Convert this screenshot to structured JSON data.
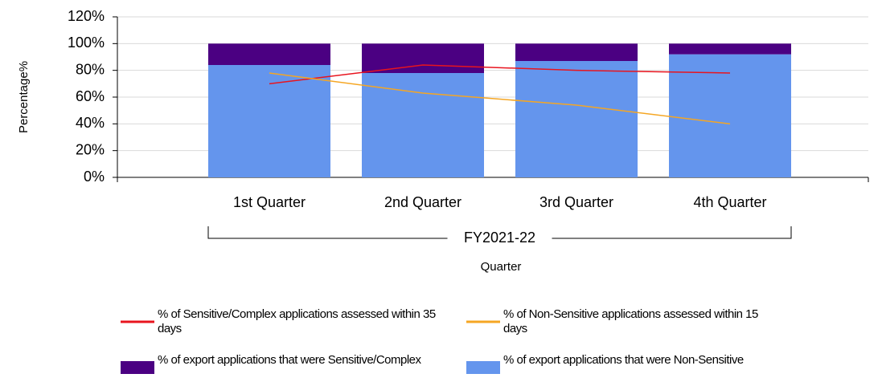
{
  "chart_data": {
    "type": "bar",
    "categories": [
      "1st Quarter",
      "2nd Quarter",
      "3rd Quarter",
      "4th Quarter"
    ],
    "category_group": "FY2021-22",
    "x_label": "Quarter",
    "y_label": "Percentage%",
    "ylim": [
      0,
      120
    ],
    "yticks": [
      {
        "value": 0,
        "label": "0%"
      },
      {
        "value": 20,
        "label": "20%"
      },
      {
        "value": 40,
        "label": "40%"
      },
      {
        "value": 60,
        "label": "60%"
      },
      {
        "value": 80,
        "label": "80%"
      },
      {
        "value": 100,
        "label": "100%"
      },
      {
        "value": 120,
        "label": "120%"
      }
    ],
    "grid": true,
    "legend": "bottom",
    "series": [
      {
        "name": "% of Sensitive/Complex applications assessed within 35 days",
        "type": "line",
        "color": "#e8141e",
        "values": [
          70,
          84,
          80,
          78
        ]
      },
      {
        "name": "% of Non-Sensitive applications assessed within 15 days",
        "type": "line",
        "color": "#f5a623",
        "values": [
          78,
          63,
          54,
          40
        ]
      },
      {
        "name": "% of export applications that were Sensitive/Complex",
        "type": "bar",
        "color": "#4b0082",
        "values": [
          16,
          22,
          13,
          8
        ]
      },
      {
        "name": "% of export applications that were Non-Sensitive",
        "type": "bar",
        "color": "#6495ed",
        "values": [
          84,
          78,
          87,
          92
        ]
      }
    ]
  }
}
